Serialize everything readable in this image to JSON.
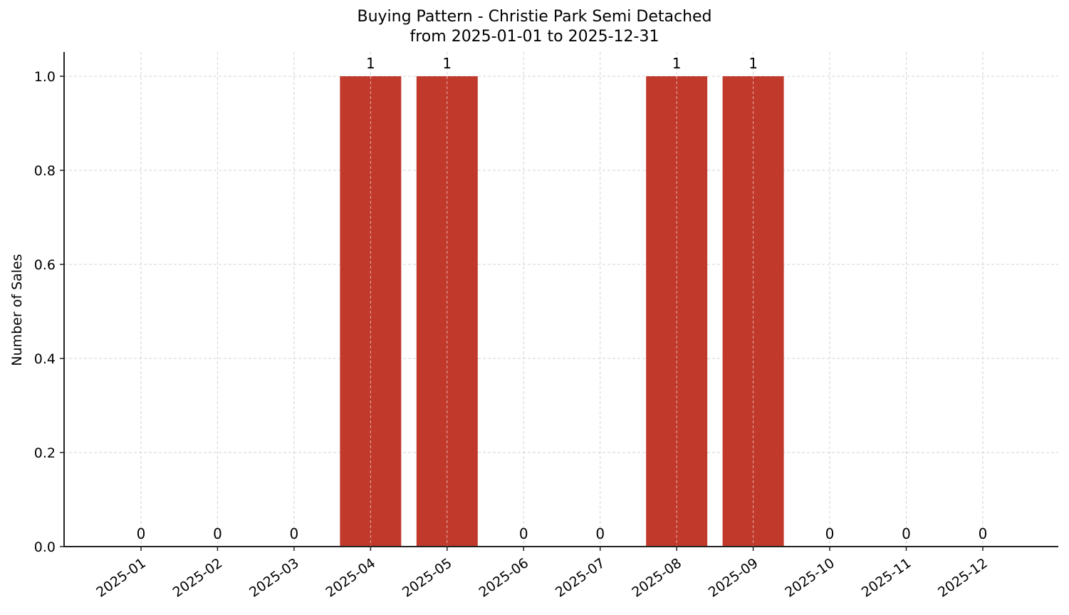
{
  "chart_data": {
    "type": "bar",
    "title": "Buying Pattern - Christie Park Semi Detached",
    "subtitle": "from 2025-01-01 to 2025-12-31",
    "xlabel": "",
    "ylabel": "Number of Sales",
    "categories": [
      "2025-01",
      "2025-02",
      "2025-03",
      "2025-04",
      "2025-05",
      "2025-06",
      "2025-07",
      "2025-08",
      "2025-09",
      "2025-10",
      "2025-11",
      "2025-12"
    ],
    "values": [
      0,
      0,
      0,
      1,
      1,
      0,
      0,
      1,
      1,
      0,
      0,
      0
    ],
    "data_labels": [
      "0",
      "0",
      "0",
      "1",
      "1",
      "0",
      "0",
      "1",
      "1",
      "0",
      "0",
      "0"
    ],
    "ylim": [
      0,
      1.05
    ],
    "yticks": [
      "0.0",
      "0.2",
      "0.4",
      "0.6",
      "0.8",
      "1.0"
    ],
    "ytick_values": [
      0,
      0.2,
      0.4,
      0.6,
      0.8,
      1.0
    ],
    "grid": true,
    "legend": null,
    "bar_color": "#c0392b",
    "xtick_rotation": -35
  }
}
